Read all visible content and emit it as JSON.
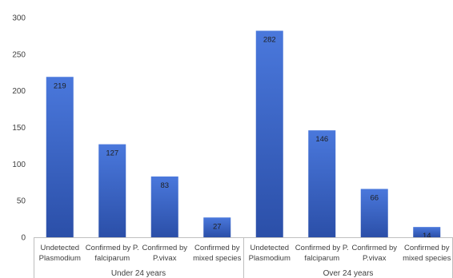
{
  "chart_data": {
    "type": "bar",
    "ylim": [
      0,
      300
    ],
    "yticks": [
      0,
      50,
      100,
      150,
      200,
      250,
      300
    ],
    "grid": false,
    "legend": "none",
    "bar_color": "#3a63c8",
    "groups": [
      {
        "label": "Under 24 years",
        "categories": [
          [
            "Undetected",
            "Plasmodium"
          ],
          [
            "Confirmed by P.",
            "falciparum"
          ],
          [
            "Confirmed by",
            "P.vivax"
          ],
          [
            "Confirmed by",
            "mixed species"
          ]
        ],
        "values": [
          219,
          127,
          83,
          27
        ]
      },
      {
        "label": "Over 24 years",
        "categories": [
          [
            "Undetected",
            "Plasmodium"
          ],
          [
            "Confirmed by P.",
            "falciparum"
          ],
          [
            "Confirmed by",
            "P.vivax"
          ],
          [
            "Confirmed by",
            "mixed species"
          ]
        ],
        "values": [
          282,
          146,
          66,
          14
        ]
      }
    ]
  }
}
